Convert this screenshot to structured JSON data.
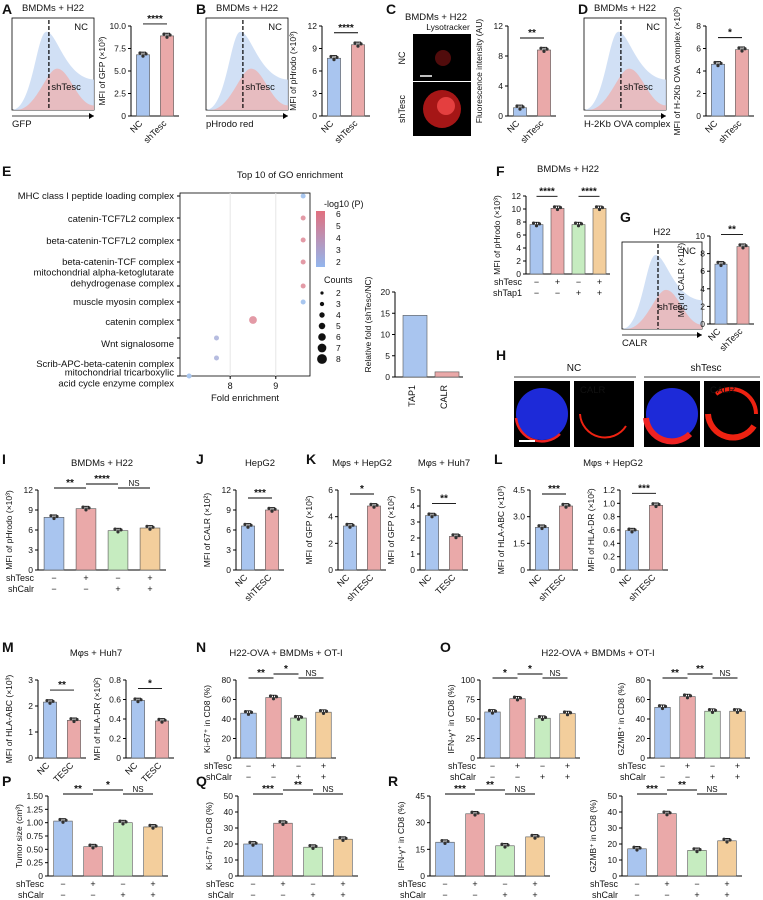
{
  "colors": {
    "blue": "#a9c5ef",
    "pink": "#eaa9a9",
    "green": "#c6ecc0",
    "orange": "#f3ce9c",
    "dot": "#333333",
    "red": "#d21f1f"
  },
  "chart_data": [
    {
      "id": "A",
      "type": "bar",
      "title": "",
      "xlabel": "",
      "ylabel": "MFI of GFP (×10³)",
      "ylim": [
        0,
        10
      ],
      "yticks": [
        "0",
        "2.5",
        "5.0",
        "7.5",
        "10.0"
      ],
      "categories": [
        "NC",
        "shTesc"
      ],
      "values": [
        6.8,
        8.9
      ],
      "sig": [
        {
          "from": 0,
          "to": 1,
          "label": "****"
        }
      ],
      "histogram": {
        "title": "BMDMs + H22",
        "axis": "GFP",
        "series": [
          "NC",
          "shTesc"
        ]
      }
    },
    {
      "id": "B",
      "type": "bar",
      "xlabel": "",
      "ylabel": "MFI of pHrodo (×10³)",
      "ylim": [
        0,
        12
      ],
      "yticks": [
        "0",
        "3",
        "6",
        "9",
        "12"
      ],
      "categories": [
        "NC",
        "shTesc"
      ],
      "values": [
        7.7,
        9.5
      ],
      "sig": [
        {
          "from": 0,
          "to": 1,
          "label": "****"
        }
      ],
      "histogram": {
        "title": "BMDMs + H22",
        "axis": "pHrodo red",
        "series": [
          "NC",
          "shTesc"
        ]
      }
    },
    {
      "id": "C",
      "type": "bar",
      "title": "BMDMs + H22",
      "ylabel": "Fluorescence intensity (AU)",
      "ylim": [
        0,
        12
      ],
      "yticks": [
        "0",
        "4",
        "8",
        "12"
      ],
      "categories": [
        "NC",
        "shTesc"
      ],
      "values": [
        1.1,
        8.8
      ],
      "sig": [
        {
          "from": 0,
          "to": 1,
          "label": "**"
        }
      ],
      "image_labels": {
        "stain": "Lysotracker",
        "rows": [
          "NC",
          "shTesc"
        ]
      }
    },
    {
      "id": "D",
      "type": "bar",
      "ylabel": "MFI of H-2Kb OVA complex (×10²)",
      "ylim": [
        0,
        8
      ],
      "yticks": [
        "0",
        "2",
        "4",
        "6",
        "8"
      ],
      "categories": [
        "NC",
        "shTesc"
      ],
      "values": [
        4.6,
        5.9
      ],
      "sig": [
        {
          "from": 0,
          "to": 1,
          "label": "*"
        }
      ],
      "histogram": {
        "title": "BMDMs + H22",
        "axis": "H-2Kb OVA complex",
        "series": [
          "NC",
          "shTesc"
        ]
      }
    },
    {
      "id": "E",
      "type": "scatter",
      "title": "Top 10 of GO enrichment",
      "xlabel": "Fold enrichment",
      "xticks": [
        "8",
        "9"
      ],
      "terms": [
        "MHC class I peptide loading complex",
        "catenin-TCF7L2 complex",
        "beta-catenin-TCF7L2 complex",
        "beta-catenin-TCF complex",
        "mitochondrial alpha-ketoglutarate dehydrogenase complex",
        "muscle myosin complex",
        "catenin complex",
        "Wnt signalosome",
        "Scrib-APC-beta-catenin complex",
        "mitochondrial tricarboxylic acid cycle enzyme complex"
      ],
      "fold": [
        9.6,
        9.6,
        9.6,
        9.6,
        9.6,
        9.6,
        8.5,
        7.7,
        7.7,
        7.1
      ],
      "neglogp": [
        2.4,
        6.0,
        6.0,
        6.0,
        6.0,
        2.4,
        6.0,
        3.5,
        3.5,
        2.4
      ],
      "counts": [
        2,
        2,
        2,
        2,
        2,
        2,
        3,
        2,
        2,
        2
      ],
      "legend_color": {
        "title": "-log10 (P)",
        "ticks": [
          "6",
          "5",
          "4",
          "3",
          "2"
        ]
      },
      "legend_size": {
        "title": "Counts",
        "ticks": [
          "2",
          "3",
          "4",
          "5",
          "6",
          "7",
          "8"
        ]
      },
      "inset": {
        "ylabel": "Relative fold (shTesc/NC)",
        "ylim": [
          0,
          20
        ],
        "yticks": [
          "0",
          "5",
          "10",
          "15",
          "20"
        ],
        "categories": [
          "TAP1",
          "CALR"
        ],
        "values": [
          14.5,
          1.2
        ]
      }
    },
    {
      "id": "F",
      "type": "bar",
      "title": "BMDMs + H22",
      "ylabel": "MFI of pHrodo (×10³)",
      "ylim": [
        0,
        12
      ],
      "yticks": [
        "0",
        "2",
        "4",
        "6",
        "8",
        "10",
        "12"
      ],
      "values": [
        7.6,
        10.1,
        7.6,
        10.1
      ],
      "design": [
        {
          "name": "shTesc",
          "signs": [
            "−",
            "+",
            "−",
            "+"
          ]
        },
        {
          "name": "shTap1",
          "signs": [
            "−",
            "−",
            "+",
            "+"
          ]
        }
      ],
      "sig": [
        {
          "from": 0,
          "to": 1,
          "label": "****"
        },
        {
          "from": 2,
          "to": 3,
          "label": "****"
        }
      ]
    },
    {
      "id": "G",
      "type": "bar",
      "ylabel": "MFI of CALR (×10²)",
      "ylim": [
        0,
        10
      ],
      "yticks": [
        "0",
        "2",
        "4",
        "6",
        "8",
        "10"
      ],
      "categories": [
        "NC",
        "shTesc"
      ],
      "values": [
        6.8,
        8.8
      ],
      "sig": [
        {
          "from": 0,
          "to": 1,
          "label": "**"
        }
      ],
      "histogram": {
        "title": "H22",
        "axis": "CALR",
        "series": [
          "NC",
          "shTesc"
        ]
      }
    },
    {
      "id": "H",
      "type": "image",
      "panels": [
        "NC",
        "shTesc"
      ],
      "stain": "CALR"
    },
    {
      "id": "I",
      "type": "bar",
      "title": "BMDMs + H22",
      "ylabel": "MFI of pHrodo (×10³)",
      "ylim": [
        0,
        12
      ],
      "yticks": [
        "0",
        "3",
        "6",
        "9",
        "12"
      ],
      "values": [
        7.9,
        9.2,
        5.9,
        6.3
      ],
      "design": [
        {
          "name": "shTesc",
          "signs": [
            "−",
            "+",
            "−",
            "+"
          ]
        },
        {
          "name": "shCalr",
          "signs": [
            "−",
            "−",
            "+",
            "+"
          ]
        }
      ],
      "sig": [
        {
          "from": 0,
          "to": 1,
          "label": "**"
        },
        {
          "from": 1,
          "to": 2,
          "label": "****"
        },
        {
          "from": 2,
          "to": 3,
          "label": "NS"
        }
      ]
    },
    {
      "id": "J",
      "type": "bar",
      "title": "HepG2",
      "ylabel": "MFI of CALR (×10²)",
      "ylim": [
        0,
        12
      ],
      "yticks": [
        "0",
        "3",
        "6",
        "9",
        "12"
      ],
      "categories": [
        "NC",
        "shTESC"
      ],
      "values": [
        6.6,
        9.0
      ],
      "sig": [
        {
          "from": 0,
          "to": 1,
          "label": "***"
        }
      ]
    },
    {
      "id": "K1",
      "type": "bar",
      "title": "Mφs + HepG2",
      "ylabel": "MFI of GFP (×10²)",
      "ylim": [
        0,
        6
      ],
      "yticks": [
        "0",
        "2",
        "4",
        "6"
      ],
      "categories": [
        "NC",
        "shTESC"
      ],
      "values": [
        3.3,
        4.8
      ],
      "sig": [
        {
          "from": 0,
          "to": 1,
          "label": "*"
        }
      ]
    },
    {
      "id": "K2",
      "type": "bar",
      "title": "Mφs + Huh7",
      "ylabel": "MFI of GFP (×10²)",
      "ylim": [
        0,
        5
      ],
      "yticks": [
        "0",
        "1",
        "2",
        "3",
        "4",
        "5"
      ],
      "categories": [
        "NC",
        "TESC"
      ],
      "values": [
        3.4,
        2.1
      ],
      "sig": [
        {
          "from": 0,
          "to": 1,
          "label": "**"
        }
      ]
    },
    {
      "id": "L1",
      "type": "bar",
      "title": "Mφs + HepG2",
      "ylabel": "MFI of HLA-ABC (×10³)",
      "ylim": [
        0,
        4.5
      ],
      "yticks": [
        "0",
        "1.5",
        "3.0",
        "4.5"
      ],
      "categories": [
        "NC",
        "shTESC"
      ],
      "values": [
        2.4,
        3.6
      ],
      "sig": [
        {
          "from": 0,
          "to": 1,
          "label": "***"
        }
      ]
    },
    {
      "id": "L2",
      "type": "bar",
      "ylabel": "MFI of HLA-DR (×10²)",
      "ylim": [
        0,
        1.2
      ],
      "yticks": [
        "0",
        "0.2",
        "0.4",
        "0.6",
        "0.8",
        "1.0",
        "1.2"
      ],
      "categories": [
        "NC",
        "shTESC"
      ],
      "values": [
        0.59,
        0.97
      ],
      "sig": [
        {
          "from": 0,
          "to": 1,
          "label": "***"
        }
      ]
    },
    {
      "id": "M1",
      "type": "bar",
      "title": "Mφs + Huh7",
      "ylabel": "MFI of HLA-ABC (×10³)",
      "ylim": [
        0,
        3
      ],
      "yticks": [
        "0",
        "1",
        "2",
        "3"
      ],
      "categories": [
        "NC",
        "TESC"
      ],
      "values": [
        2.15,
        1.45
      ],
      "sig": [
        {
          "from": 0,
          "to": 1,
          "label": "**"
        }
      ]
    },
    {
      "id": "M2",
      "type": "bar",
      "ylabel": "MFI of HLA-DR (×10²)",
      "ylim": [
        0,
        0.8
      ],
      "yticks": [
        "0",
        "0.2",
        "0.4",
        "0.6",
        "0.8"
      ],
      "categories": [
        "NC",
        "TESC"
      ],
      "values": [
        0.59,
        0.38
      ],
      "sig": [
        {
          "from": 0,
          "to": 1,
          "label": "*"
        }
      ]
    },
    {
      "id": "N",
      "type": "bar",
      "title": "H22-OVA + BMDMs + OT-I",
      "ylabel": "Ki-67⁺ in CD8 (%)",
      "ylim": [
        0,
        80
      ],
      "yticks": [
        "0",
        "20",
        "40",
        "60",
        "80"
      ],
      "values": [
        46,
        62,
        41,
        47
      ],
      "design": [
        {
          "name": "shTesc",
          "signs": [
            "−",
            "+",
            "−",
            "+"
          ]
        },
        {
          "name": "shCalr",
          "signs": [
            "−",
            "−",
            "+",
            "+"
          ]
        }
      ],
      "sig": [
        {
          "from": 0,
          "to": 1,
          "label": "**"
        },
        {
          "from": 1,
          "to": 2,
          "label": "*"
        },
        {
          "from": 2,
          "to": 3,
          "label": "NS"
        }
      ]
    },
    {
      "id": "O1",
      "type": "bar",
      "title": "H22-OVA + BMDMs + OT-I",
      "ylabel": "IFN-γ⁺ in CD8 (%)",
      "ylim": [
        0,
        100
      ],
      "yticks": [
        "0",
        "25",
        "50",
        "75",
        "100"
      ],
      "values": [
        59,
        76,
        51,
        57
      ],
      "design": [
        {
          "name": "shTesc",
          "signs": [
            "−",
            "+",
            "−",
            "+"
          ]
        },
        {
          "name": "shCalr",
          "signs": [
            "−",
            "−",
            "+",
            "+"
          ]
        }
      ],
      "sig": [
        {
          "from": 0,
          "to": 1,
          "label": "*"
        },
        {
          "from": 1,
          "to": 2,
          "label": "*"
        },
        {
          "from": 2,
          "to": 3,
          "label": "NS"
        }
      ]
    },
    {
      "id": "O2",
      "type": "bar",
      "ylabel": "GZMB⁺ in CD8 (%)",
      "ylim": [
        0,
        80
      ],
      "yticks": [
        "0",
        "20",
        "40",
        "60",
        "80"
      ],
      "values": [
        52,
        63,
        48,
        48
      ],
      "design": [
        {
          "name": "shTesc",
          "signs": [
            "−",
            "+",
            "−",
            "+"
          ]
        },
        {
          "name": "shCalr",
          "signs": [
            "−",
            "−",
            "+",
            "+"
          ]
        }
      ],
      "sig": [
        {
          "from": 0,
          "to": 1,
          "label": "**"
        },
        {
          "from": 1,
          "to": 2,
          "label": "**"
        },
        {
          "from": 2,
          "to": 3,
          "label": "NS"
        }
      ]
    },
    {
      "id": "P",
      "type": "bar",
      "ylabel": "Tumor size (cm³)",
      "ylim": [
        0,
        1.5
      ],
      "yticks": [
        "0",
        "0.25",
        "0.50",
        "0.75",
        "1.00",
        "1.25",
        "1.50"
      ],
      "values": [
        1.03,
        0.55,
        1.0,
        0.92
      ],
      "design": [
        {
          "name": "shTesc",
          "signs": [
            "−",
            "+",
            "−",
            "+"
          ]
        },
        {
          "name": "shCalr",
          "signs": [
            "−",
            "−",
            "+",
            "+"
          ]
        }
      ],
      "sig": [
        {
          "from": 0,
          "to": 1,
          "label": "**"
        },
        {
          "from": 1,
          "to": 2,
          "label": "*"
        },
        {
          "from": 2,
          "to": 3,
          "label": "NS"
        }
      ]
    },
    {
      "id": "Q",
      "type": "bar",
      "ylabel": "Ki-67⁺ in CD8 (%)",
      "ylim": [
        0,
        50
      ],
      "yticks": [
        "0",
        "10",
        "20",
        "30",
        "40",
        "50"
      ],
      "values": [
        20,
        33,
        18,
        23
      ],
      "design": [
        {
          "name": "shTesc",
          "signs": [
            "−",
            "+",
            "−",
            "+"
          ]
        },
        {
          "name": "shCalr",
          "signs": [
            "−",
            "−",
            "+",
            "+"
          ]
        }
      ],
      "sig": [
        {
          "from": 0,
          "to": 1,
          "label": "***"
        },
        {
          "from": 1,
          "to": 2,
          "label": "**"
        },
        {
          "from": 2,
          "to": 3,
          "label": "NS"
        }
      ]
    },
    {
      "id": "R1",
      "type": "bar",
      "ylabel": "IFN-γ⁺ in CD8 (%)",
      "ylim": [
        0,
        45
      ],
      "yticks": [
        "0",
        "15",
        "30",
        "45"
      ],
      "values": [
        19,
        35,
        17,
        22
      ],
      "design": [
        {
          "name": "shTesc",
          "signs": [
            "−",
            "+",
            "−",
            "+"
          ]
        },
        {
          "name": "shCalr",
          "signs": [
            "−",
            "−",
            "+",
            "+"
          ]
        }
      ],
      "sig": [
        {
          "from": 0,
          "to": 1,
          "label": "***"
        },
        {
          "from": 1,
          "to": 2,
          "label": "**"
        },
        {
          "from": 2,
          "to": 3,
          "label": "NS"
        }
      ]
    },
    {
      "id": "R2",
      "type": "bar",
      "ylabel": "GZMB⁺ in CD8 (%)",
      "ylim": [
        0,
        50
      ],
      "yticks": [
        "0",
        "10",
        "20",
        "30",
        "40",
        "50"
      ],
      "values": [
        17,
        39,
        16,
        22
      ],
      "design": [
        {
          "name": "shTesc",
          "signs": [
            "−",
            "+",
            "−",
            "+"
          ]
        },
        {
          "name": "shCalr",
          "signs": [
            "−",
            "−",
            "+",
            "+"
          ]
        }
      ],
      "sig": [
        {
          "from": 0,
          "to": 1,
          "label": "***"
        },
        {
          "from": 1,
          "to": 2,
          "label": "**"
        },
        {
          "from": 2,
          "to": 3,
          "label": "NS"
        }
      ]
    }
  ],
  "panel_letters": [
    "A",
    "B",
    "C",
    "D",
    "E",
    "F",
    "G",
    "H",
    "I",
    "J",
    "K",
    "L",
    "M",
    "N",
    "O",
    "P",
    "Q",
    "R"
  ]
}
